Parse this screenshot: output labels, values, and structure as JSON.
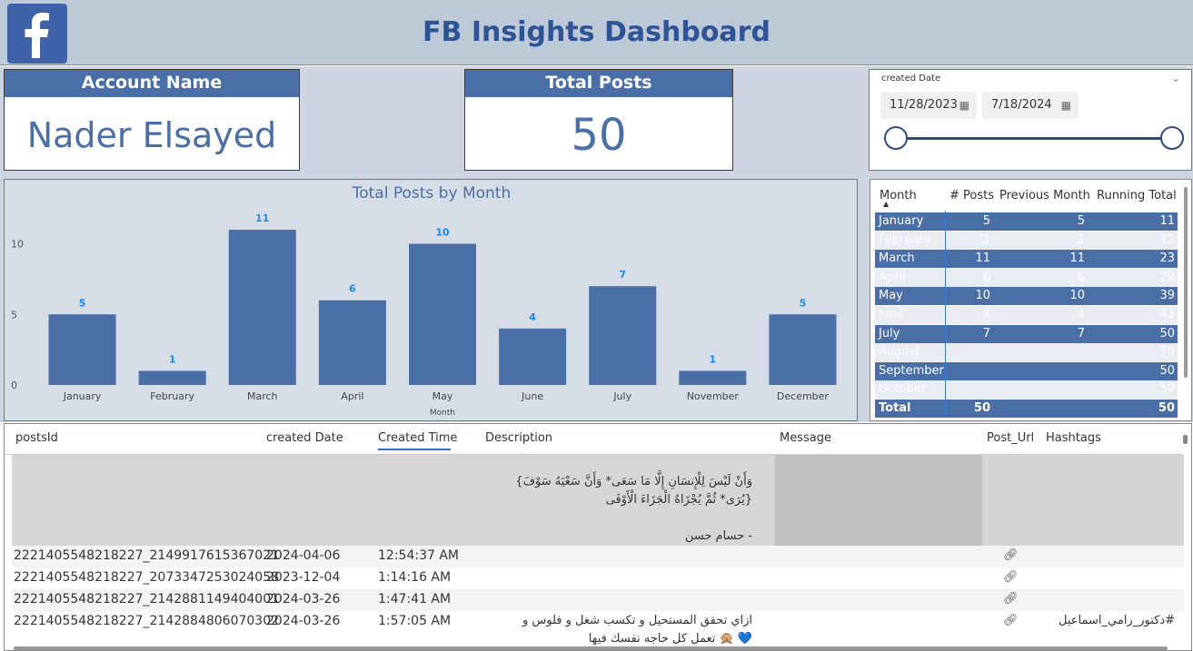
{
  "header": {
    "title": "FB Insights Dashboard",
    "logo_icon": "facebook-logo-icon"
  },
  "cards": {
    "account": {
      "title": "Account Name",
      "value": "Nader Elsayed"
    },
    "posts": {
      "title": "Total Posts",
      "value": "50"
    }
  },
  "filter": {
    "label": "created Date",
    "start": "11/28/2023",
    "end": "7/18/2024",
    "calendar_icon": "calendar-icon",
    "chevron_icon": "chevron-down-icon"
  },
  "chart_data": {
    "type": "bar",
    "title": "Total Posts by Month",
    "xlabel": "Month",
    "ylabel": "",
    "ylim": [
      0,
      11
    ],
    "yticks": [
      0,
      5,
      10
    ],
    "categories": [
      "January",
      "February",
      "March",
      "April",
      "May",
      "June",
      "July",
      "November",
      "December"
    ],
    "values": [
      5,
      1,
      11,
      6,
      10,
      4,
      7,
      1,
      5
    ],
    "color": "#4a6ea6",
    "label_color": "#1e88e5"
  },
  "matrix": {
    "headers": [
      "Month",
      "# Posts",
      "Previous Month",
      "Running Total"
    ],
    "rows": [
      {
        "month": "January",
        "posts": "5",
        "prev": "5",
        "running": "11",
        "style": "dark"
      },
      {
        "month": "February",
        "posts": "1",
        "prev": "1",
        "running": "12",
        "style": "light"
      },
      {
        "month": "March",
        "posts": "11",
        "prev": "11",
        "running": "23",
        "style": "dark"
      },
      {
        "month": "April",
        "posts": "6",
        "prev": "6",
        "running": "29",
        "style": "light"
      },
      {
        "month": "May",
        "posts": "10",
        "prev": "10",
        "running": "39",
        "style": "dark"
      },
      {
        "month": "June",
        "posts": "4",
        "prev": "4",
        "running": "43",
        "style": "light"
      },
      {
        "month": "July",
        "posts": "7",
        "prev": "7",
        "running": "50",
        "style": "dark"
      },
      {
        "month": "August",
        "posts": "",
        "prev": "",
        "running": "50",
        "style": "light"
      },
      {
        "month": "September",
        "posts": "",
        "prev": "",
        "running": "50",
        "style": "dark"
      },
      {
        "month": "October",
        "posts": "",
        "prev": "",
        "running": "50",
        "style": "light"
      }
    ],
    "total": {
      "label": "Total",
      "posts": "50",
      "running": "50"
    }
  },
  "table": {
    "headers": [
      "postsId",
      "created Date",
      "Created Time",
      "Description",
      "Message",
      "Post_Url",
      "Hashtags"
    ],
    "first_row_description": [
      "وَأَنْ لَيْسَ لِلْإِنسَانِ إِلَّا مَا سَعَى* وَأَنَّ سَعْيَهُ سَوْفَ}",
      "{يُرَى* ثُمَّ يُجْزَاهُ الْجَزَاءَ الْأَوْفَى",
      "- حسام حسن"
    ],
    "rows": [
      {
        "id": "2221405548218227_2149917615367021",
        "date": "2024-04-06",
        "time": "12:54:37 AM",
        "description": "",
        "hashtags": ""
      },
      {
        "id": "2221405548218227_2073347253024058",
        "date": "2023-12-04",
        "time": "1:14:16 AM",
        "description": "",
        "hashtags": ""
      },
      {
        "id": "2221405548218227_2142881149404001",
        "date": "2024-03-26",
        "time": "1:47:41 AM",
        "description": "",
        "hashtags": ""
      },
      {
        "id": "2221405548218227_2142884806070302",
        "date": "2024-03-26",
        "time": "1:57:05 AM",
        "description": "ازاي تحقق المستحيل و تكسب شغل و فلوس و",
        "description2": "💙 🙊 تعمل كل حاجه نفسك فيها",
        "hashtags": "#دكتور_رامي_اسماعيل"
      }
    ],
    "link_icon": "link-icon"
  }
}
